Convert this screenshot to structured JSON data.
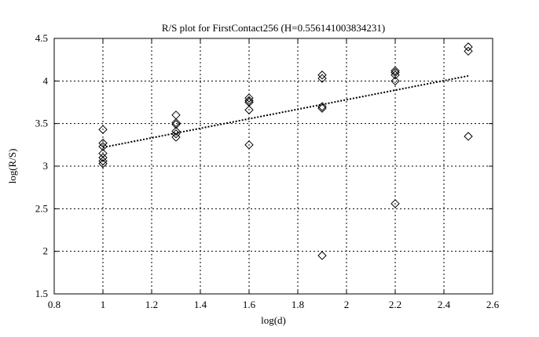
{
  "chart_data": {
    "type": "scatter",
    "title": "R/S plot for FirstContact256 (H=0.556141003834231)",
    "xlabel": "log(d)",
    "ylabel": "log(R/S)",
    "xlim": [
      0.8,
      2.6
    ],
    "ylim": [
      1.5,
      4.5
    ],
    "xticks": [
      "0.8",
      "1",
      "1.2",
      "1.4",
      "1.6",
      "1.8",
      "2",
      "2.2",
      "2.4",
      "2.6"
    ],
    "yticks": [
      "1.5",
      "2",
      "2.5",
      "3",
      "3.5",
      "4",
      "4.5"
    ],
    "grid": true,
    "marker": "diamond",
    "points": [
      {
        "x": 1.0,
        "y": 3.43
      },
      {
        "x": 1.0,
        "y": 3.27
      },
      {
        "x": 1.0,
        "y": 3.23
      },
      {
        "x": 1.0,
        "y": 3.15
      },
      {
        "x": 1.0,
        "y": 3.1
      },
      {
        "x": 1.0,
        "y": 3.06
      },
      {
        "x": 1.0,
        "y": 3.03
      },
      {
        "x": 1.3,
        "y": 3.6
      },
      {
        "x": 1.3,
        "y": 3.51
      },
      {
        "x": 1.3,
        "y": 3.49
      },
      {
        "x": 1.3,
        "y": 3.41
      },
      {
        "x": 1.3,
        "y": 3.38
      },
      {
        "x": 1.3,
        "y": 3.34
      },
      {
        "x": 1.6,
        "y": 3.8
      },
      {
        "x": 1.6,
        "y": 3.77
      },
      {
        "x": 1.6,
        "y": 3.75
      },
      {
        "x": 1.6,
        "y": 3.66
      },
      {
        "x": 1.6,
        "y": 3.25
      },
      {
        "x": 1.9,
        "y": 4.07
      },
      {
        "x": 1.9,
        "y": 4.03
      },
      {
        "x": 1.9,
        "y": 3.7
      },
      {
        "x": 1.9,
        "y": 3.68
      },
      {
        "x": 1.9,
        "y": 1.95
      },
      {
        "x": 2.2,
        "y": 4.12
      },
      {
        "x": 2.2,
        "y": 4.1
      },
      {
        "x": 2.2,
        "y": 4.07
      },
      {
        "x": 2.2,
        "y": 4.0
      },
      {
        "x": 2.2,
        "y": 2.56
      },
      {
        "x": 2.5,
        "y": 4.4
      },
      {
        "x": 2.5,
        "y": 4.35
      },
      {
        "x": 2.5,
        "y": 3.35
      }
    ],
    "fit_line": {
      "x": [
        1.0,
        2.5
      ],
      "y": [
        3.22,
        4.06
      ],
      "style": "dotted"
    }
  }
}
